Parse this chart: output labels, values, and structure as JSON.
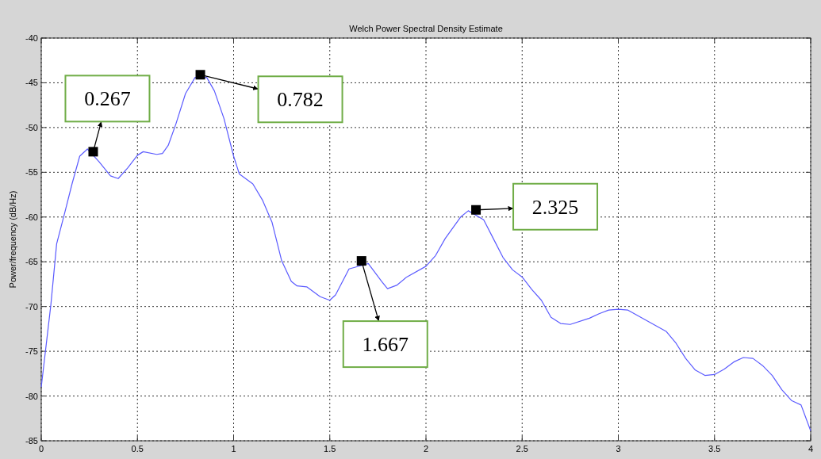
{
  "chart_data": {
    "type": "line",
    "title": "Welch Power Spectral Density Estimate",
    "ylabel": "Power/frequency (dB/Hz)",
    "xlim": [
      0,
      4
    ],
    "xticks": [
      0,
      0.5,
      1,
      1.5,
      2,
      2.5,
      3,
      3.5,
      4
    ],
    "ylim": [
      -85,
      -40
    ],
    "yticks": [
      -85,
      -80,
      -75,
      -70,
      -65,
      -60,
      -55,
      -50,
      -45,
      -40
    ],
    "grid": true,
    "series": [
      {
        "color": "#5b5bff",
        "x": [
          0,
          0.05,
          0.08,
          0.12,
          0.16,
          0.2,
          0.24,
          0.3,
          0.36,
          0.4,
          0.45,
          0.5,
          0.53,
          0.6,
          0.63,
          0.66,
          0.7,
          0.75,
          0.8,
          0.86,
          0.9,
          0.95,
          1.0,
          1.03,
          1.1,
          1.15,
          1.2,
          1.25,
          1.3,
          1.33,
          1.38,
          1.45,
          1.5,
          1.53,
          1.6,
          1.7,
          1.77,
          1.8,
          1.85,
          1.9,
          2.0,
          2.05,
          2.1,
          2.18,
          2.22,
          2.3,
          2.35,
          2.4,
          2.45,
          2.5,
          2.55,
          2.6,
          2.65,
          2.7,
          2.75,
          2.85,
          2.9,
          2.95,
          3.0,
          3.05,
          3.15,
          3.2,
          3.25,
          3.3,
          3.35,
          3.4,
          3.45,
          3.5,
          3.55,
          3.6,
          3.65,
          3.7,
          3.75,
          3.8,
          3.85,
          3.9,
          3.95,
          4.0
        ],
        "values": [
          -79,
          -69.8,
          -63,
          -59.7,
          -56.3,
          -53.2,
          -52.4,
          -53.8,
          -55.4,
          -55.7,
          -54.5,
          -53.1,
          -52.7,
          -53,
          -52.9,
          -52,
          -49.6,
          -46.2,
          -44.4,
          -44.4,
          -45.9,
          -49,
          -53.2,
          -55.2,
          -56.3,
          -58.1,
          -60.6,
          -64.9,
          -67.2,
          -67.7,
          -67.8,
          -68.9,
          -69.3,
          -68.7,
          -65.8,
          -65.2,
          -67.2,
          -68,
          -67.6,
          -66.7,
          -65.5,
          -64.3,
          -62.4,
          -60,
          -59.3,
          -60.3,
          -62.4,
          -64.5,
          -65.9,
          -66.7,
          -68.1,
          -69.3,
          -71.2,
          -71.9,
          -72,
          -71.3,
          -70.8,
          -70.4,
          -70.3,
          -70.4,
          -71.6,
          -72.2,
          -72.8,
          -74.1,
          -75.8,
          -77.1,
          -77.7,
          -77.6,
          -77,
          -76.2,
          -75.7,
          -75.8,
          -76.6,
          -77.7,
          -79.3,
          -80.5,
          -81,
          -83.9
        ]
      },
      {
        "type": "scatter",
        "marker": "square",
        "color": "#000000",
        "x": [
          0.27,
          0.827,
          1.665,
          2.26
        ],
        "values": [
          -52.7,
          -44.1,
          -64.9,
          -59.2
        ]
      }
    ],
    "annotations": [
      {
        "text": "0.267",
        "x": 0.27,
        "y": -52.7
      },
      {
        "text": "0.782",
        "x": 0.827,
        "y": -44.1
      },
      {
        "text": "1.667",
        "x": 1.665,
        "y": -64.9
      },
      {
        "text": "2.325",
        "x": 2.26,
        "y": -59.2
      }
    ]
  }
}
